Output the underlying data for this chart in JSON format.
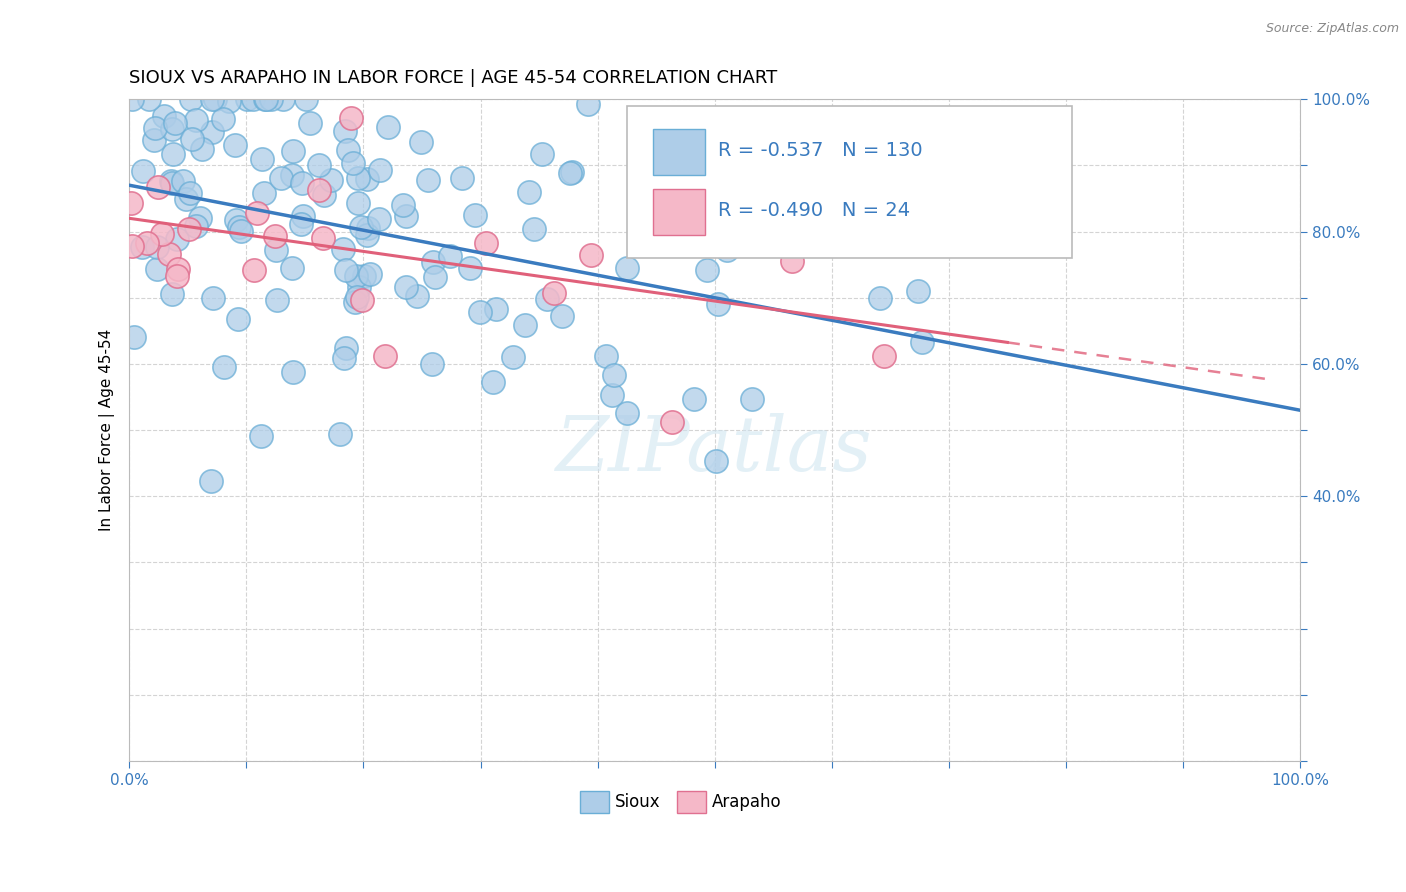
{
  "title": "SIOUX VS ARAPAHO IN LABOR FORCE | AGE 45-54 CORRELATION CHART",
  "source_text": "Source: ZipAtlas.com",
  "ylabel": "In Labor Force | Age 45-54",
  "legend_sioux": "Sioux",
  "legend_arapaho": "Arapaho",
  "r_sioux": -0.537,
  "n_sioux": 130,
  "r_arapaho": -0.49,
  "n_arapaho": 24,
  "watermark": "ZIPatlas",
  "sioux_color": "#aecde8",
  "sioux_edge_color": "#6aaed6",
  "sioux_line_color": "#3a7bbf",
  "arapaho_color": "#f5b8c8",
  "arapaho_edge_color": "#e07090",
  "arapaho_line_color": "#e0607a",
  "background_color": "#ffffff",
  "grid_color": "#d0d0d0",
  "xlim": [
    0,
    100
  ],
  "ylim": [
    0,
    100
  ],
  "sioux_reg_start_y": 87.0,
  "sioux_reg_end_y": 53.0,
  "arapaho_reg_start_y": 82.0,
  "arapaho_reg_end_y": 57.0,
  "arapaho_solid_end_x": 75,
  "arapaho_dash_end_x": 97,
  "sioux_seed": 17,
  "arapaho_seed": 99
}
